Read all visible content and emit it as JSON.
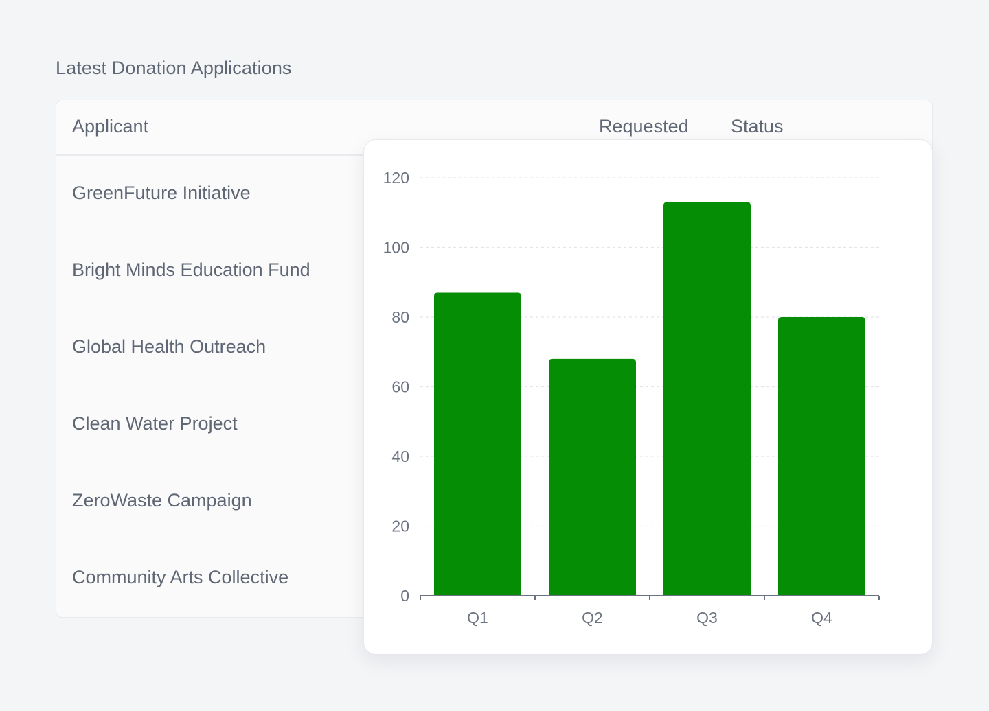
{
  "section": {
    "title": "Latest Donation Applications"
  },
  "table": {
    "headers": {
      "applicant": "Applicant",
      "requested": "Requested",
      "status": "Status"
    },
    "rows": [
      {
        "applicant": "GreenFuture Initiative"
      },
      {
        "applicant": "Bright Minds Education Fund"
      },
      {
        "applicant": "Global Health Outreach"
      },
      {
        "applicant": "Clean Water Project"
      },
      {
        "applicant": "ZeroWaste Campaign"
      },
      {
        "applicant": "Community Arts Collective"
      }
    ]
  },
  "chart_data": {
    "type": "bar",
    "categories": [
      "Q1",
      "Q2",
      "Q3",
      "Q4"
    ],
    "values": [
      87,
      68,
      113,
      80
    ],
    "ylim": [
      0,
      120
    ],
    "yticks": [
      0,
      20,
      40,
      60,
      80,
      100,
      120
    ],
    "grid": true,
    "bar_color": "#058d05",
    "grid_color": "#e3e5e9",
    "axis_color": "#6b7280"
  }
}
